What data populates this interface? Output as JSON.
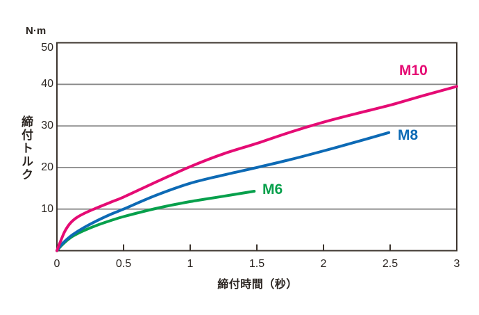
{
  "chart_data": {
    "type": "line",
    "unit_label": "N·m",
    "ylabel": "締付トルク",
    "xlabel": "締付時間（秒）",
    "xlim": [
      0,
      3
    ],
    "ylim": [
      0,
      50
    ],
    "x_ticks": [
      0,
      0.5,
      1,
      1.5,
      2,
      2.5,
      3
    ],
    "x_tick_labels": [
      "0",
      "0.5",
      "1",
      "1.5",
      "2",
      "2.5",
      "3"
    ],
    "y_ticks": [
      0,
      10,
      20,
      30,
      40,
      50
    ],
    "y_tick_labels": [
      "0",
      "10",
      "20",
      "30",
      "40",
      "50"
    ],
    "gridlines_y": [
      10,
      20,
      30,
      40
    ],
    "grid_on": true,
    "legend_position": "inline-labels",
    "grid_color": "#8a8a8a",
    "frame_color": "#3c342e",
    "text_color": "#2b2521",
    "background_color": "#ffffff",
    "series": [
      {
        "name": "M10",
        "color": "#e50b74",
        "x": [
          0,
          0.03,
          0.06,
          0.1,
          0.15,
          0.22,
          0.3,
          0.4,
          0.5,
          0.75,
          1.0,
          1.25,
          1.5,
          1.75,
          2.0,
          2.25,
          2.5,
          2.75,
          3.0
        ],
        "y": [
          0,
          2.5,
          4.7,
          6.6,
          8.0,
          9.2,
          10.3,
          11.6,
          12.9,
          16.6,
          20.2,
          23.3,
          25.8,
          28.5,
          30.9,
          33.0,
          35.0,
          37.3,
          39.5
        ]
      },
      {
        "name": "M8",
        "color": "#0d6ab5",
        "x": [
          0,
          0.03,
          0.07,
          0.12,
          0.2,
          0.3,
          0.4,
          0.5,
          0.75,
          1.0,
          1.25,
          1.5,
          1.75,
          2.0,
          2.25,
          2.49
        ],
        "y": [
          0,
          1.3,
          2.6,
          3.9,
          5.5,
          7.2,
          8.7,
          10.0,
          13.4,
          16.2,
          18.2,
          20.0,
          21.9,
          24.0,
          26.2,
          28.4
        ]
      },
      {
        "name": "M6",
        "color": "#07a04c",
        "x": [
          0,
          0.03,
          0.07,
          0.12,
          0.2,
          0.3,
          0.4,
          0.5,
          0.75,
          1.0,
          1.25,
          1.48
        ],
        "y": [
          0,
          1.1,
          2.3,
          3.5,
          4.8,
          6.1,
          7.2,
          8.2,
          10.2,
          11.8,
          13.1,
          14.3
        ]
      }
    ]
  }
}
